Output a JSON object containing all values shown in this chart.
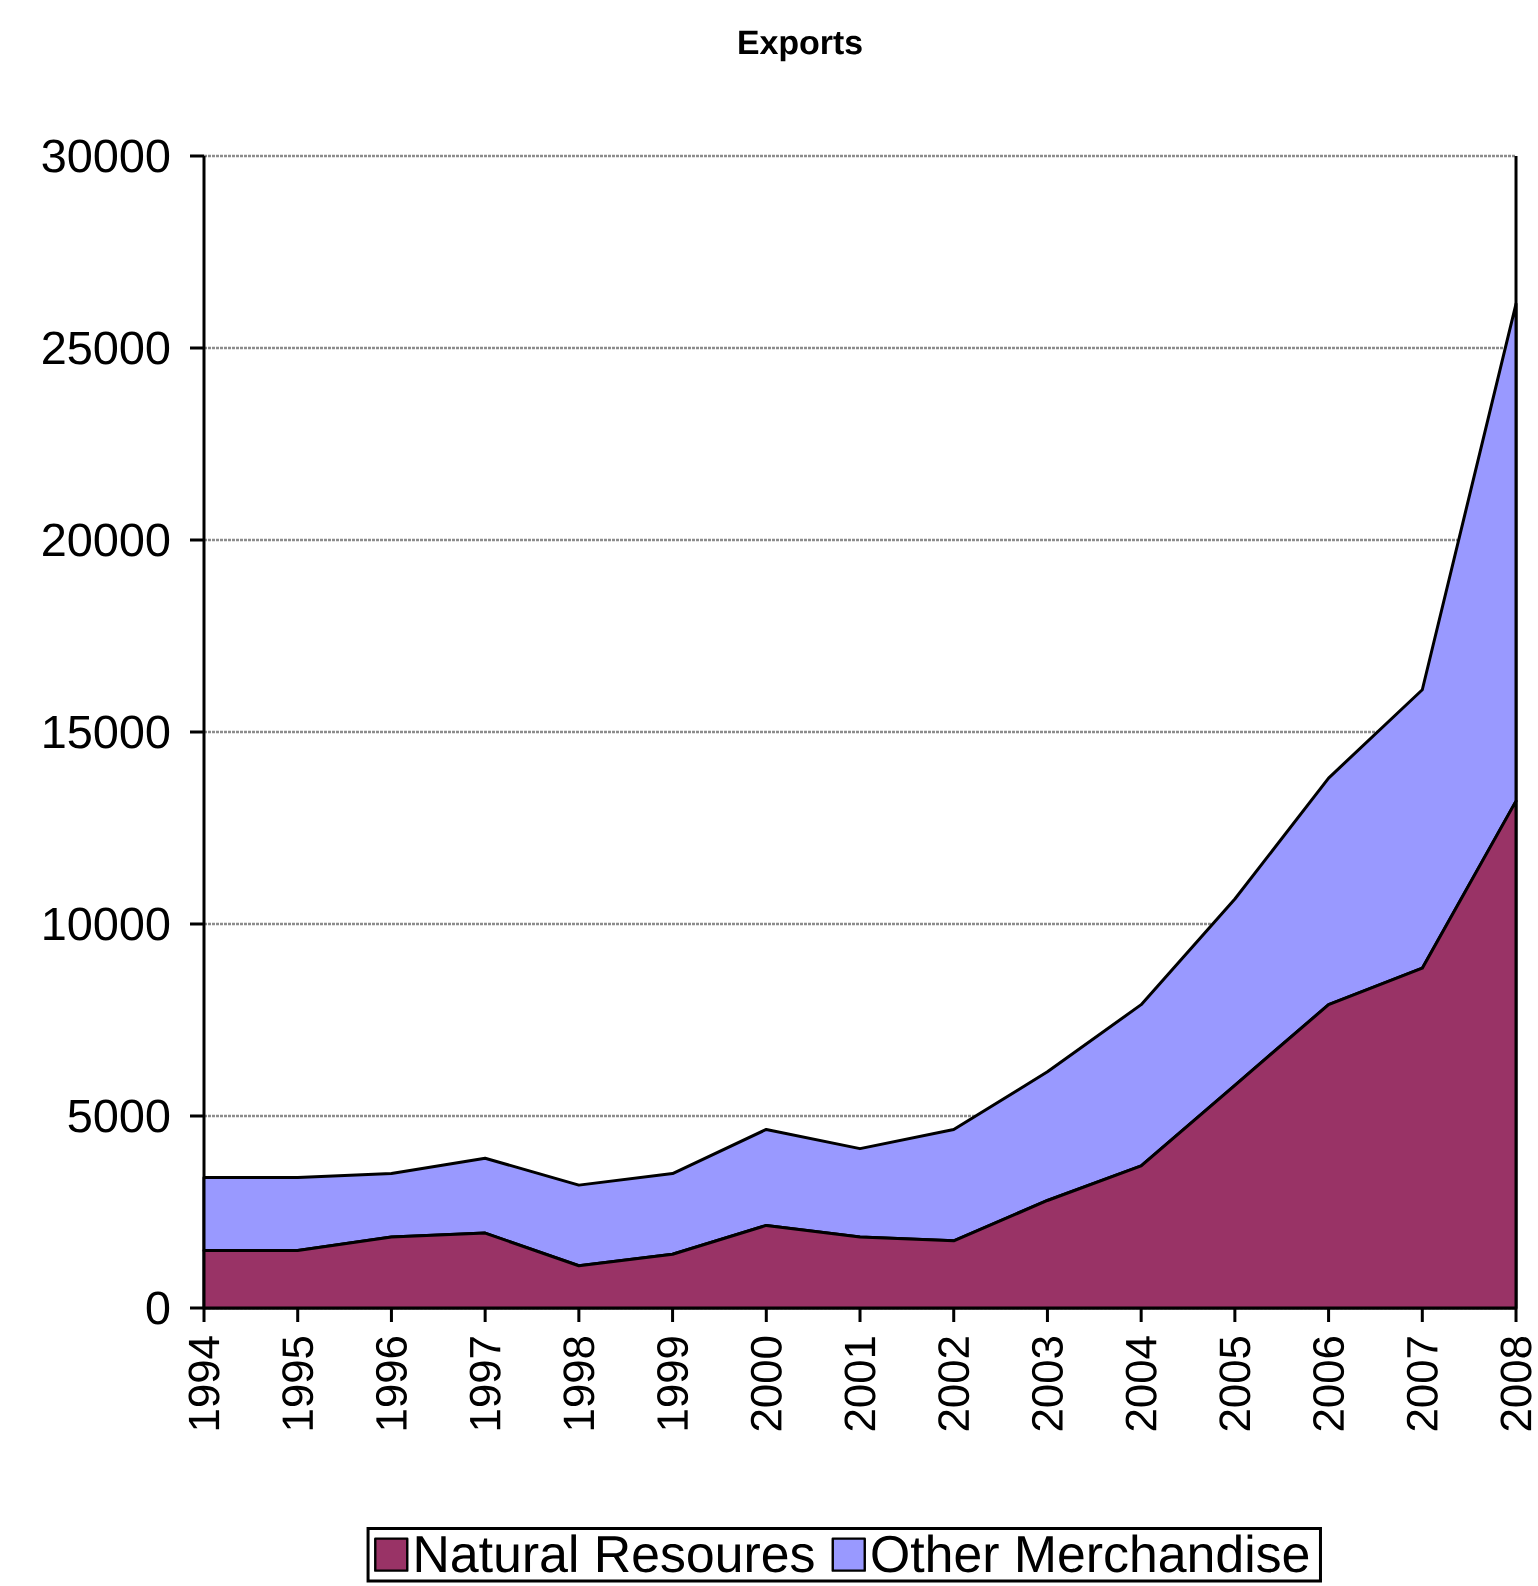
{
  "chart_data": {
    "type": "area",
    "title": "Exports",
    "categories": [
      "1994",
      "1995",
      "1996",
      "1997",
      "1998",
      "1999",
      "2000",
      "2001",
      "2002",
      "2003",
      "2004",
      "2005",
      "2006",
      "2007",
      "2008"
    ],
    "stacked": true,
    "series": [
      {
        "name": "Natural Resoures",
        "color": "#993366",
        "values": [
          1500,
          1500,
          1850,
          1950,
          1100,
          1400,
          2150,
          1850,
          1750,
          2800,
          3700,
          5800,
          7900,
          8850,
          13200
        ]
      },
      {
        "name": "Other Merchandise",
        "color": "#9999ff",
        "values": [
          1900,
          1900,
          1650,
          1950,
          2100,
          2100,
          2500,
          2300,
          2900,
          3350,
          4200,
          4850,
          5900,
          7250,
          12950
        ]
      }
    ],
    "ylim": [
      0,
      30000
    ],
    "yticks": [
      0,
      5000,
      10000,
      15000,
      20000,
      25000,
      30000
    ],
    "grid": "y",
    "legend": "bottom"
  }
}
